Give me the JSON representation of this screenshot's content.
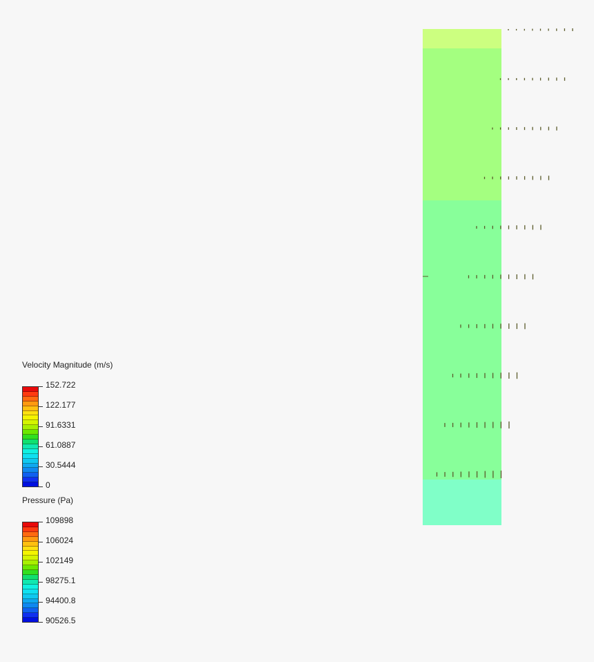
{
  "legends": {
    "velocity": {
      "title": "Velocity Magnitude (m/s)",
      "ticks": [
        "152.722",
        "122.177",
        "91.6331",
        "61.0887",
        "30.5444",
        "0"
      ]
    },
    "pressure": {
      "title": "Pressure (Pa)",
      "ticks": [
        "109898",
        "106024",
        "102149",
        "98275.1",
        "94400.8",
        "90526.5"
      ]
    }
  },
  "colormap": [
    "#e80a0a",
    "#ff3a10",
    "#ff6a10",
    "#ff9a10",
    "#ffc010",
    "#ffe010",
    "#f4f400",
    "#d4f400",
    "#a8f000",
    "#6ce800",
    "#30e020",
    "#10e070",
    "#10e8b0",
    "#10f0e0",
    "#10e0f0",
    "#10c8f0",
    "#10a8f0",
    "#1088f0",
    "#1060f0",
    "#1030f0",
    "#0010e0"
  ],
  "field": {
    "bands": [
      {
        "color": "#ccff80"
      },
      {
        "color": "#a4ff80"
      },
      {
        "color": "#88ff9a"
      },
      {
        "color": "#80ffc8"
      }
    ]
  }
}
